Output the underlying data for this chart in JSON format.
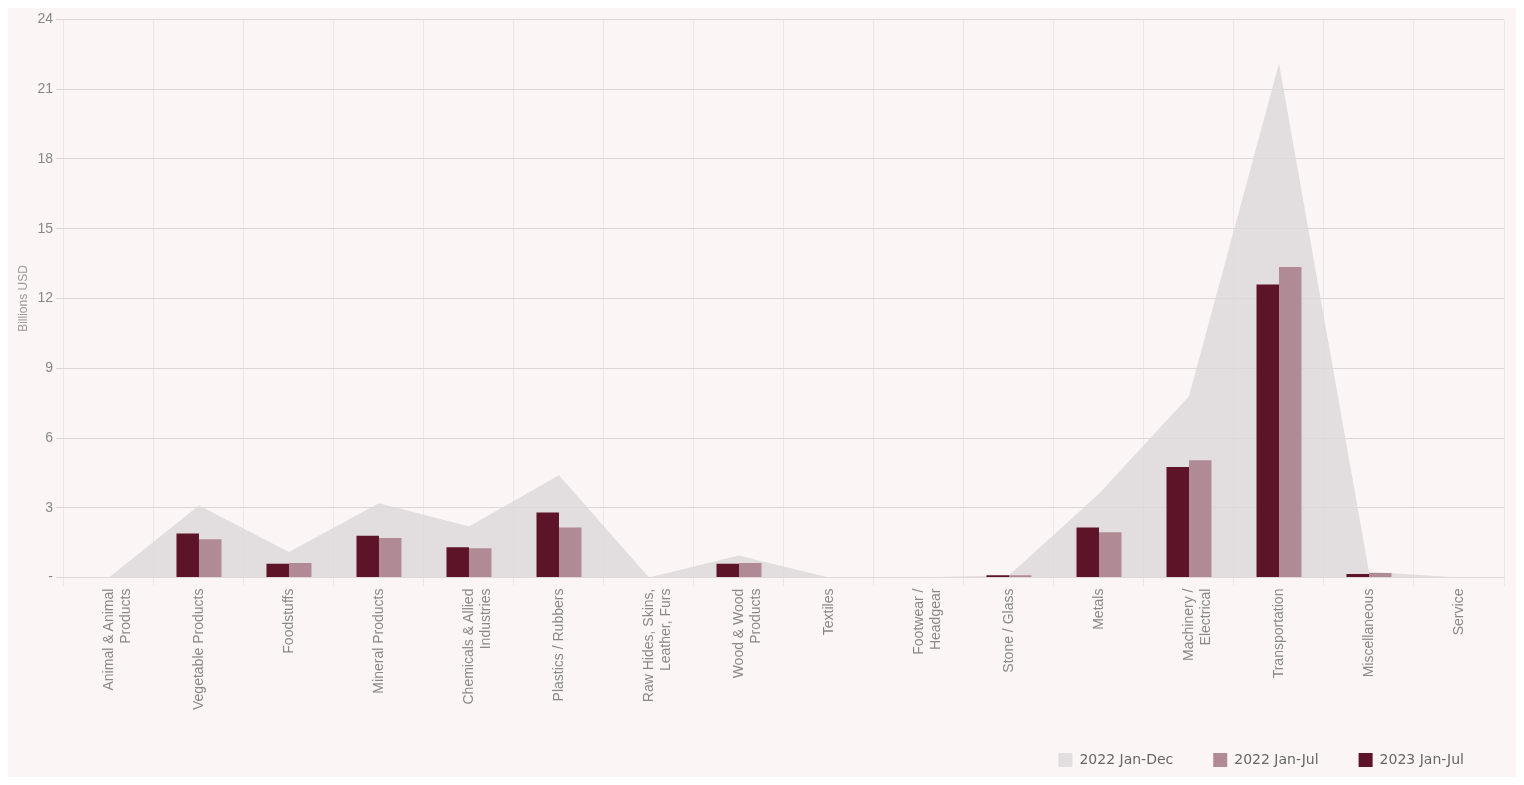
{
  "chart_data": {
    "type": "bar",
    "ylabel": "Billions USD",
    "categories": [
      "Animal & Animal Products",
      "Vegetable Products",
      "Foodstuffs",
      "Mineral Products",
      "Chemicals & Allied Industries",
      "Plastics / Rubbers",
      "Raw Hides, Skins, Leather, Furs",
      "Wood & Wood Products",
      "Textiles",
      "Footwear / Headgear",
      "Stone / Glass",
      "Metals",
      "Machinery / Electrical",
      "Transportation",
      "Miscellaneous",
      "Service"
    ],
    "series": [
      {
        "name": "2022 Jan-Dec",
        "type": "area",
        "color": "#dcd8d8",
        "values": [
          0,
          3.1,
          1.1,
          3.2,
          2.2,
          4.4,
          0,
          0.95,
          0,
          0,
          0.1,
          3.6,
          7.8,
          22.1,
          0.25,
          0
        ]
      },
      {
        "name": "2023 Jan-Jul",
        "color": "#5e1428",
        "values": [
          0,
          1.9,
          0.6,
          1.8,
          1.3,
          2.8,
          0,
          0.6,
          0,
          0,
          0.1,
          2.15,
          4.75,
          12.6,
          0.15,
          0
        ]
      },
      {
        "name": "2022 Jan-Jul",
        "color": "#b08a94",
        "values": [
          0,
          1.65,
          0.63,
          1.7,
          1.26,
          2.15,
          0,
          0.63,
          0,
          0,
          0.1,
          1.95,
          5.05,
          13.35,
          0.2,
          0
        ]
      }
    ],
    "ylim": [
      0,
      24
    ],
    "yticks": [
      {
        "value": 0,
        "label": "-"
      },
      3,
      6,
      9,
      12,
      15,
      18,
      21,
      24
    ],
    "grid": true,
    "legend": "bottom right"
  }
}
